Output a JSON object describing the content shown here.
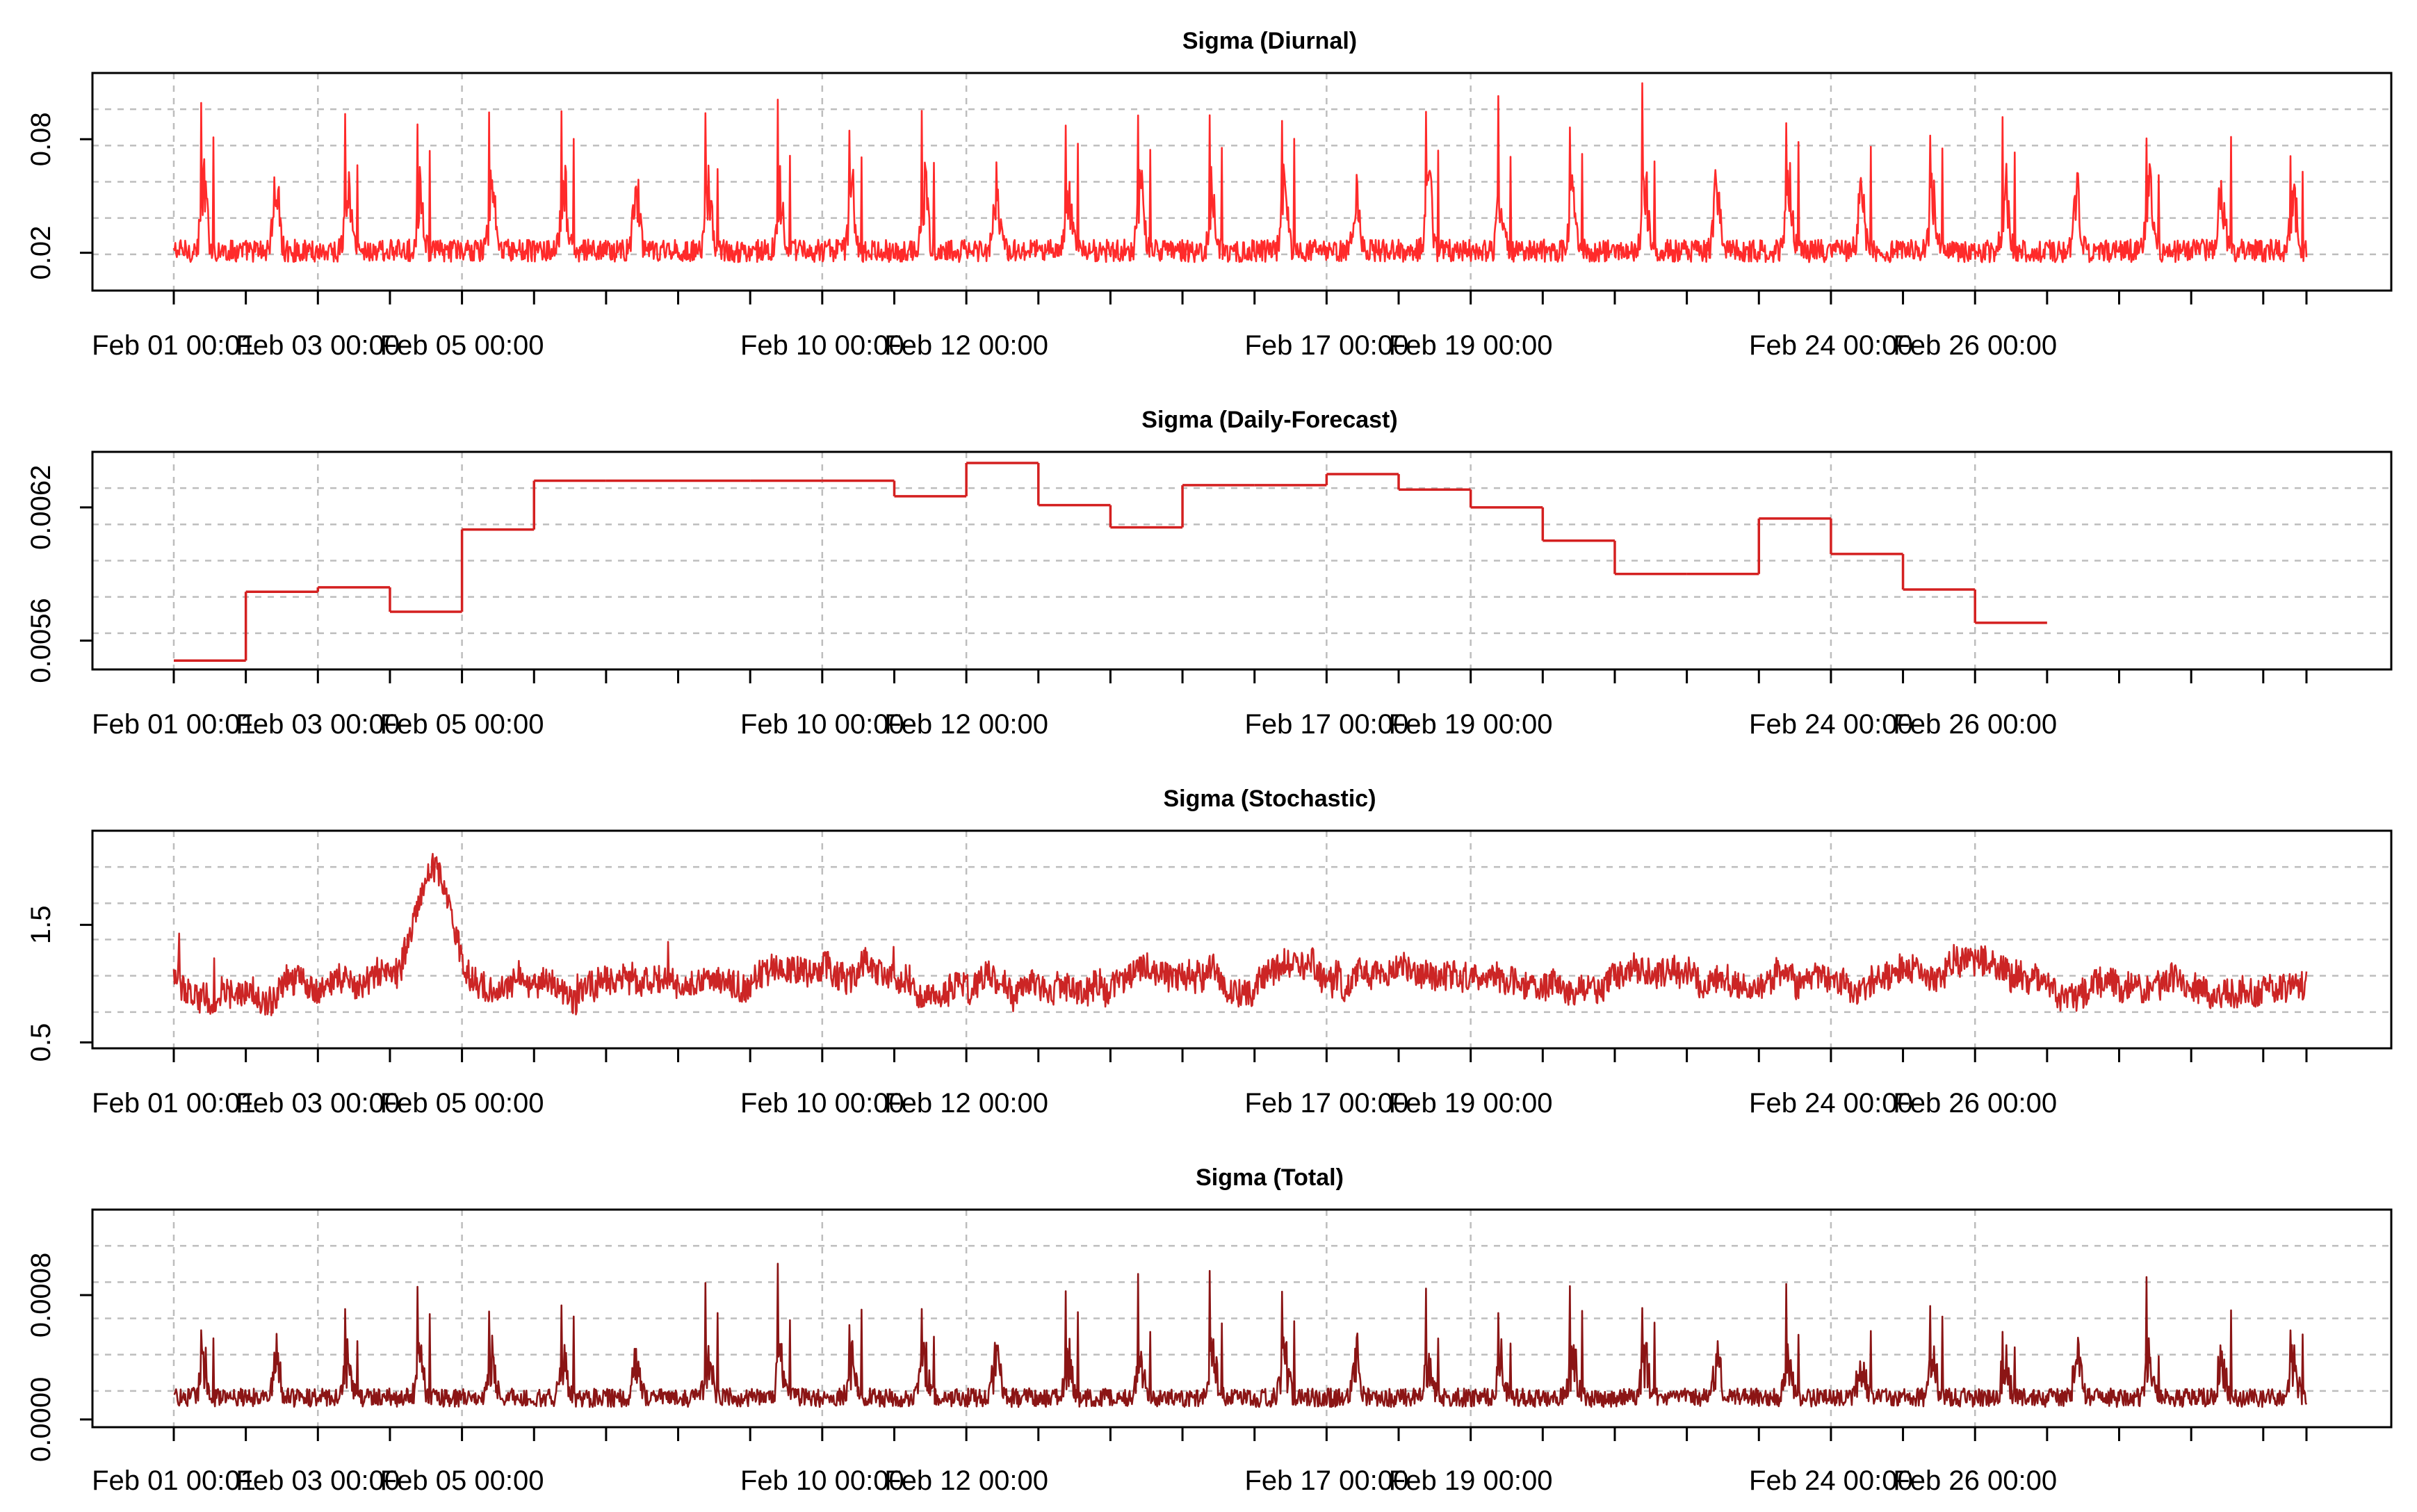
{
  "chart_data": [
    {
      "type": "line",
      "title": "Sigma (Diurnal)",
      "series_color": "#ff2a2a",
      "x_tick_labels": [
        "Feb 01 00:01",
        "Feb 03 00:00",
        "Feb 05 00:00",
        "Feb 10 00:00",
        "Feb 12 00:00",
        "Feb 17 00:00",
        "Feb 19 00:00",
        "Feb 24 00:00",
        "Feb 26 00:00"
      ],
      "x_tick_days": [
        0,
        2,
        4,
        9,
        11,
        16,
        18,
        23,
        25
      ],
      "x_range_days": [
        0,
        29.6
      ],
      "y_ticks": [
        0.02,
        0.08
      ],
      "y_tick_labels": [
        "0.02",
        "0.08"
      ],
      "ylim": [
        0.0,
        0.115
      ],
      "grid": true,
      "pattern": "daily spikes of ~0.09-0.10 over a baseline of ~0.01-0.04"
    },
    {
      "type": "line",
      "step": true,
      "title": "Sigma (Daily-Forecast)",
      "series_color": "#d42020",
      "x_tick_labels": [
        "Feb 01 00:01",
        "Feb 03 00:00",
        "Feb 05 00:00",
        "Feb 10 00:00",
        "Feb 12 00:00",
        "Feb 17 00:00",
        "Feb 19 00:00",
        "Feb 24 00:00",
        "Feb 26 00:00"
      ],
      "x_tick_days": [
        0,
        2,
        4,
        9,
        11,
        16,
        18,
        23,
        25
      ],
      "x_range_days": [
        0,
        29.6
      ],
      "y_ticks": [
        0.0056,
        0.0062
      ],
      "y_tick_labels": [
        "0.0056",
        "0.0062"
      ],
      "ylim": [
        0.00547,
        0.00645
      ],
      "grid": true,
      "steps": [
        {
          "start": 0,
          "end": 1,
          "value": 0.00551
        },
        {
          "start": 1,
          "end": 2,
          "value": 0.00582
        },
        {
          "start": 2,
          "end": 3,
          "value": 0.00584
        },
        {
          "start": 3,
          "end": 4,
          "value": 0.00573
        },
        {
          "start": 4,
          "end": 5,
          "value": 0.0061
        },
        {
          "start": 5,
          "end": 6,
          "value": 0.00632
        },
        {
          "start": 6,
          "end": 7,
          "value": 0.00632
        },
        {
          "start": 7,
          "end": 8,
          "value": 0.00632
        },
        {
          "start": 8,
          "end": 9,
          "value": 0.00632
        },
        {
          "start": 9,
          "end": 10,
          "value": 0.00632
        },
        {
          "start": 10,
          "end": 11,
          "value": 0.00625
        },
        {
          "start": 11,
          "end": 12,
          "value": 0.0064
        },
        {
          "start": 12,
          "end": 13,
          "value": 0.00621
        },
        {
          "start": 13,
          "end": 14,
          "value": 0.00611
        },
        {
          "start": 14,
          "end": 15,
          "value": 0.0063
        },
        {
          "start": 15,
          "end": 16,
          "value": 0.0063
        },
        {
          "start": 16,
          "end": 17,
          "value": 0.00635
        },
        {
          "start": 17,
          "end": 18,
          "value": 0.00628
        },
        {
          "start": 18,
          "end": 19,
          "value": 0.0062
        },
        {
          "start": 19,
          "end": 20,
          "value": 0.00605
        },
        {
          "start": 20,
          "end": 21,
          "value": 0.0059
        },
        {
          "start": 21,
          "end": 22,
          "value": 0.0059
        },
        {
          "start": 22,
          "end": 23,
          "value": 0.00615
        },
        {
          "start": 23,
          "end": 24,
          "value": 0.00599
        },
        {
          "start": 24,
          "end": 25,
          "value": 0.00583
        },
        {
          "start": 25,
          "end": 26,
          "value": 0.00568
        }
      ]
    },
    {
      "type": "line",
      "title": "Sigma (Stochastic)",
      "series_color": "#cc2525",
      "x_tick_labels": [
        "Feb 01 00:01",
        "Feb 03 00:00",
        "Feb 05 00:00",
        "Feb 10 00:00",
        "Feb 12 00:00",
        "Feb 17 00:00",
        "Feb 19 00:00",
        "Feb 24 00:00",
        "Feb 26 00:00"
      ],
      "x_tick_days": [
        0,
        2,
        4,
        9,
        11,
        16,
        18,
        23,
        25
      ],
      "x_range_days": [
        0,
        29.6
      ],
      "y_ticks": [
        0.5,
        1.5
      ],
      "y_tick_labels": [
        "0.5",
        "1.5"
      ],
      "ylim": [
        0.45,
        2.3
      ],
      "grid": true,
      "pattern": "slowly varying around 1.0 with peaks up to ~2.1 near Feb 03-04"
    },
    {
      "type": "line",
      "title": "Sigma (Total)",
      "series_color": "#8b1515",
      "x_tick_labels": [
        "Feb 01 00:01",
        "Feb 03 00:00",
        "Feb 05 00:00",
        "Feb 10 00:00",
        "Feb 12 00:00",
        "Feb 17 00:00",
        "Feb 19 00:00",
        "Feb 24 00:00",
        "Feb 26 00:00"
      ],
      "x_tick_days": [
        0,
        2,
        4,
        9,
        11,
        16,
        18,
        23,
        25
      ],
      "x_range_days": [
        0,
        29.6
      ],
      "y_ticks": [
        0.0,
        0.0008
      ],
      "y_tick_labels": [
        "0.0000",
        "0.0008"
      ],
      "ylim": [
        -5e-05,
        0.00135
      ],
      "grid": true,
      "pattern": "daily spikes up to ~0.0012 over a baseline of ~0.00005-0.0002"
    }
  ]
}
